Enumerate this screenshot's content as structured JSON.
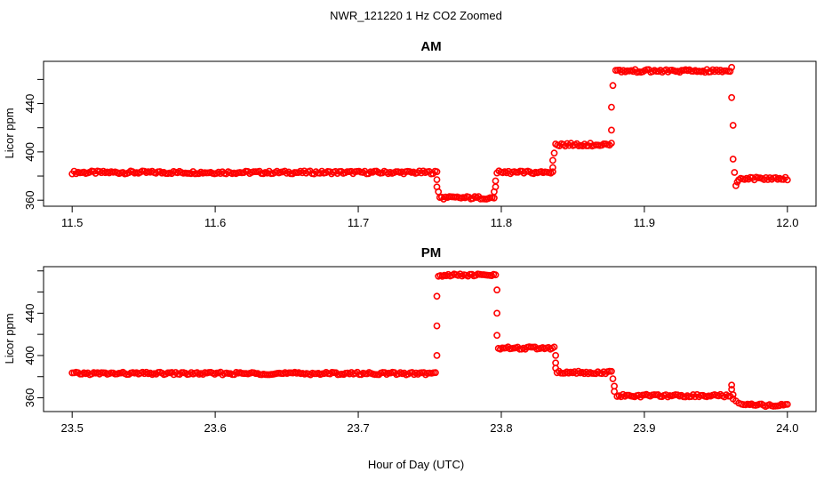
{
  "figure": {
    "title": "NWR_121220  1 Hz CO2 Zoomed",
    "xlabel": "Hour of Day (UTC)"
  },
  "chart_data": [
    {
      "type": "scatter",
      "title": "AM",
      "ylabel": "Licor ppm",
      "xlim": [
        11.48,
        12.02
      ],
      "ylim": [
        355,
        475
      ],
      "xticks": [
        11.5,
        11.6,
        11.7,
        11.8,
        11.9,
        12.0
      ],
      "xtick_labels": [
        "11.5",
        "11.6",
        "11.7",
        "11.8",
        "11.9",
        "12.0"
      ],
      "yticks": [
        360,
        400,
        440
      ],
      "ytick_labels": [
        "360",
        "400",
        "440"
      ],
      "marker_color": "#ff0000",
      "segments": [
        {
          "x": [
            11.5,
            11.755
          ],
          "y": 383
        },
        {
          "x": [
            11.757,
            11.795
          ],
          "y": 362
        },
        {
          "x": [
            11.797,
            11.836
          ],
          "y": 383
        },
        {
          "x": [
            11.838,
            11.877
          ],
          "y": 406
        },
        {
          "x": [
            11.88,
            11.96
          ],
          "y": 467
        },
        {
          "x": [
            11.966,
            12.0
          ],
          "y": 378
        }
      ],
      "transitions": [
        {
          "x": 11.755,
          "y": 377
        },
        {
          "x": 11.755,
          "y": 371
        },
        {
          "x": 11.756,
          "y": 367
        },
        {
          "x": 11.795,
          "y": 367
        },
        {
          "x": 11.796,
          "y": 371
        },
        {
          "x": 11.796,
          "y": 376
        },
        {
          "x": 11.836,
          "y": 387
        },
        {
          "x": 11.836,
          "y": 393
        },
        {
          "x": 11.837,
          "y": 399
        },
        {
          "x": 11.877,
          "y": 418
        },
        {
          "x": 11.877,
          "y": 437
        },
        {
          "x": 11.878,
          "y": 455
        },
        {
          "x": 11.961,
          "y": 470
        },
        {
          "x": 11.961,
          "y": 445
        },
        {
          "x": 11.962,
          "y": 422
        },
        {
          "x": 11.962,
          "y": 394
        },
        {
          "x": 11.963,
          "y": 383
        },
        {
          "x": 11.964,
          "y": 372
        },
        {
          "x": 11.965,
          "y": 375
        }
      ]
    },
    {
      "type": "scatter",
      "title": "PM",
      "ylabel": "Licor ppm",
      "xlim": [
        23.48,
        24.02
      ],
      "ylim": [
        347,
        484
      ],
      "xticks": [
        23.5,
        23.6,
        23.7,
        23.8,
        23.9,
        24.0
      ],
      "xtick_labels": [
        "23.5",
        "23.6",
        "23.7",
        "23.8",
        "23.9",
        "24.0"
      ],
      "yticks": [
        360,
        400,
        440
      ],
      "ytick_labels": [
        "360",
        "400",
        "440"
      ],
      "marker_color": "#ff0000",
      "segments": [
        {
          "x": [
            23.5,
            23.754
          ],
          "y": 383
        },
        {
          "x": [
            23.756,
            23.796
          ],
          "y": 476
        },
        {
          "x": [
            23.798,
            23.837
          ],
          "y": 407
        },
        {
          "x": [
            23.839,
            23.877
          ],
          "y": 384
        },
        {
          "x": [
            23.881,
            23.96
          ],
          "y": 362
        },
        {
          "x": [
            23.968,
            24.0
          ],
          "y": 353
        }
      ],
      "transitions": [
        {
          "x": 23.755,
          "y": 400
        },
        {
          "x": 23.755,
          "y": 428
        },
        {
          "x": 23.755,
          "y": 456
        },
        {
          "x": 23.797,
          "y": 462
        },
        {
          "x": 23.797,
          "y": 440
        },
        {
          "x": 23.797,
          "y": 419
        },
        {
          "x": 23.838,
          "y": 400
        },
        {
          "x": 23.838,
          "y": 393
        },
        {
          "x": 23.838,
          "y": 388
        },
        {
          "x": 23.878,
          "y": 378
        },
        {
          "x": 23.879,
          "y": 371
        },
        {
          "x": 23.879,
          "y": 366
        },
        {
          "x": 23.961,
          "y": 372
        },
        {
          "x": 23.961,
          "y": 368
        },
        {
          "x": 23.962,
          "y": 363
        },
        {
          "x": 23.962,
          "y": 359
        },
        {
          "x": 23.964,
          "y": 357
        },
        {
          "x": 23.966,
          "y": 355
        }
      ]
    }
  ]
}
